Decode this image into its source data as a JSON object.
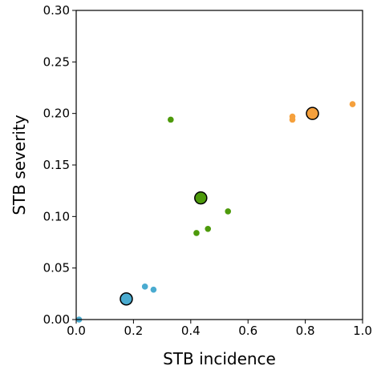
{
  "chart_data": {
    "type": "scatter",
    "title": "",
    "xlabel": "STB incidence",
    "ylabel": "STB severity",
    "xlim": [
      0.0,
      1.0
    ],
    "ylim": [
      0.0,
      0.3
    ],
    "xticks": [
      "0.0",
      "0.2",
      "0.4",
      "0.6",
      "0.8",
      "1.0"
    ],
    "yticks": [
      "0.00",
      "0.05",
      "0.10",
      "0.15",
      "0.20",
      "0.25",
      "0.30"
    ],
    "grid": false,
    "legend": "none",
    "series": [
      {
        "color": "#4aabd0",
        "points": [
          [
            0.01,
            0.0
          ],
          [
            0.24,
            0.032
          ],
          [
            0.27,
            0.029
          ]
        ],
        "mean": [
          0.175,
          0.02
        ]
      },
      {
        "color": "#4d9a0b",
        "points": [
          [
            0.33,
            0.194
          ],
          [
            0.42,
            0.084
          ],
          [
            0.46,
            0.088
          ],
          [
            0.53,
            0.105
          ]
        ],
        "mean": [
          0.435,
          0.118
        ]
      },
      {
        "color": "#f5a03c",
        "points": [
          [
            0.755,
            0.194
          ],
          [
            0.755,
            0.197
          ],
          [
            0.965,
            0.209
          ]
        ],
        "mean": [
          0.825,
          0.2
        ]
      }
    ]
  }
}
